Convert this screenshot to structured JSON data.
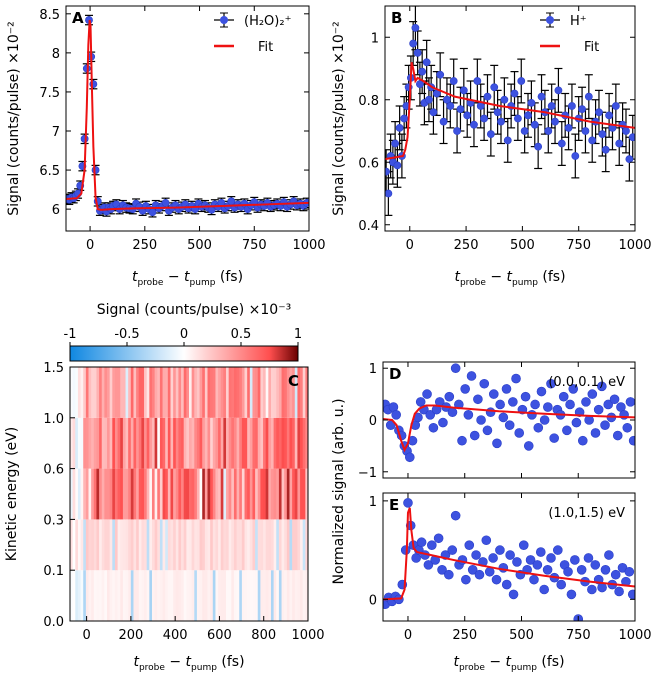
{
  "chart_data": [
    {
      "panel": "A",
      "type": "scatter",
      "title": "",
      "xlabel": "t_probe − t_pump (fs)",
      "ylabel": "Signal (counts/pulse) ×10⁻²",
      "xlim": [
        -110,
        1000
      ],
      "ylim": [
        5.72,
        8.6
      ],
      "xticks": [
        0,
        250,
        500,
        750,
        1000
      ],
      "yticks": [
        6,
        6.5,
        7,
        7.5,
        8,
        8.5
      ],
      "ytick_labels": [
        "6",
        "6.5",
        "7",
        "7.5",
        "8",
        "8.5"
      ],
      "legend": {
        "series": "(H₂O)₂⁺",
        "fit": "Fit",
        "placement": "top-right"
      },
      "err": 0.06,
      "series": [
        {
          "name": "(H₂O)₂⁺",
          "x": [
            -105,
            -95,
            -85,
            -75,
            -65,
            -55,
            -45,
            -35,
            -25,
            -15,
            -5,
            5,
            15,
            25,
            35,
            45,
            55,
            65,
            75,
            85,
            95,
            105,
            120,
            135,
            150,
            165,
            180,
            195,
            210,
            225,
            240,
            255,
            270,
            285,
            300,
            315,
            330,
            345,
            360,
            375,
            390,
            405,
            420,
            435,
            450,
            465,
            480,
            495,
            510,
            525,
            540,
            555,
            570,
            585,
            600,
            615,
            630,
            645,
            660,
            675,
            690,
            705,
            720,
            735,
            750,
            765,
            780,
            795,
            810,
            825,
            840,
            855,
            870,
            885,
            900,
            915,
            930,
            945,
            960,
            975,
            990
          ],
          "y": [
            6.13,
            6.12,
            6.15,
            6.14,
            6.17,
            6.2,
            6.3,
            6.55,
            6.9,
            7.8,
            8.42,
            7.95,
            7.6,
            6.5,
            6.1,
            5.98,
            6.0,
            6.02,
            5.97,
            6.02,
            6.0,
            6.04,
            6.06,
            6.0,
            6.05,
            6.02,
            6.01,
            6.0,
            6.07,
            6.03,
            5.98,
            6.04,
            6.0,
            5.96,
            6.05,
            6.01,
            6.04,
            6.08,
            5.98,
            6.02,
            6.05,
            6.0,
            6.03,
            6.06,
            6.01,
            6.04,
            6.0,
            6.07,
            6.03,
            6.05,
            6.02,
            5.99,
            6.06,
            6.03,
            6.08,
            6.01,
            6.04,
            6.1,
            6.02,
            6.06,
            6.03,
            6.07,
            6.0,
            6.05,
            6.09,
            6.02,
            6.06,
            6.04,
            6.08,
            6.03,
            6.05,
            6.07,
            6.04,
            6.09,
            6.03,
            6.06,
            6.1,
            6.05,
            6.07,
            6.04,
            6.08
          ]
        }
      ],
      "fit": {
        "x": [
          -110,
          -60,
          -40,
          -25,
          -15,
          -8,
          -2,
          2,
          8,
          15,
          25,
          35,
          50,
          100,
          200,
          400,
          600,
          800,
          1000
        ],
        "y": [
          6.13,
          6.14,
          6.2,
          6.5,
          7.3,
          8.1,
          8.42,
          8.35,
          7.6,
          6.8,
          6.15,
          6.0,
          5.99,
          6.0,
          6.01,
          6.02,
          6.04,
          6.06,
          6.08
        ]
      }
    },
    {
      "panel": "B",
      "type": "scatter",
      "title": "",
      "xlabel": "t_probe − t_pump (fs)",
      "ylabel": "Signal (counts/pulse) ×10⁻²",
      "xlim": [
        -110,
        1000
      ],
      "ylim": [
        0.38,
        1.1
      ],
      "xticks": [
        0,
        250,
        500,
        750,
        1000
      ],
      "yticks": [
        0.4,
        0.6,
        0.8,
        1.0
      ],
      "ytick_labels": [
        "0.4",
        "0.6",
        "0.8",
        "1"
      ],
      "legend": {
        "series": "H⁺",
        "fit": "Fit",
        "placement": "top-right"
      },
      "err": 0.07,
      "series": [
        {
          "name": "H⁺",
          "x": [
            -105,
            -95,
            -85,
            -75,
            -65,
            -55,
            -45,
            -35,
            -25,
            -15,
            -5,
            5,
            15,
            25,
            35,
            45,
            55,
            65,
            75,
            85,
            95,
            105,
            120,
            135,
            150,
            165,
            180,
            195,
            210,
            225,
            240,
            255,
            270,
            285,
            300,
            315,
            330,
            345,
            360,
            375,
            390,
            405,
            420,
            435,
            450,
            465,
            480,
            495,
            510,
            525,
            540,
            555,
            570,
            585,
            600,
            615,
            630,
            645,
            660,
            675,
            690,
            705,
            720,
            735,
            750,
            765,
            780,
            795,
            810,
            825,
            840,
            855,
            870,
            885,
            900,
            915,
            930,
            945,
            960,
            975,
            990
          ],
          "y": [
            0.57,
            0.5,
            0.62,
            0.6,
            0.66,
            0.59,
            0.71,
            0.62,
            0.74,
            0.78,
            0.84,
            0.87,
            0.98,
            1.03,
            0.95,
            0.85,
            0.89,
            0.79,
            0.92,
            0.8,
            0.84,
            0.76,
            0.82,
            0.88,
            0.73,
            0.8,
            0.78,
            0.86,
            0.7,
            0.77,
            0.83,
            0.75,
            0.79,
            0.72,
            0.86,
            0.78,
            0.74,
            0.81,
            0.69,
            0.84,
            0.76,
            0.73,
            0.8,
            0.67,
            0.78,
            0.82,
            0.74,
            0.86,
            0.7,
            0.75,
            0.79,
            0.72,
            0.65,
            0.81,
            0.76,
            0.7,
            0.78,
            0.73,
            0.83,
            0.66,
            0.75,
            0.71,
            0.78,
            0.62,
            0.74,
            0.77,
            0.7,
            0.81,
            0.67,
            0.73,
            0.76,
            0.69,
            0.64,
            0.75,
            0.71,
            0.78,
            0.66,
            0.72,
            0.7,
            0.61,
            0.68
          ]
        }
      ],
      "fit": {
        "x": [
          -110,
          -30,
          -20,
          -10,
          0,
          8,
          15,
          25,
          35,
          60,
          100,
          200,
          400,
          600,
          800,
          1000
        ],
        "y": [
          0.61,
          0.62,
          0.64,
          0.68,
          0.8,
          0.92,
          0.9,
          0.86,
          0.87,
          0.86,
          0.84,
          0.81,
          0.78,
          0.76,
          0.73,
          0.71
        ]
      }
    },
    {
      "panel": "C",
      "type": "heatmap",
      "title": "Signal (counts/pulse) ×10⁻³",
      "xlabel": "t_probe − t_pump (fs)",
      "ylabel": "Kinetic energy (eV)",
      "xlim": [
        -75,
        1000
      ],
      "colorbar": {
        "range": [
          -1,
          1
        ],
        "ticks": [
          -1,
          -0.5,
          0,
          0.5,
          1
        ],
        "tick_labels": [
          "-1",
          "-0.5",
          "0",
          "0.5",
          "1"
        ],
        "placement": "top"
      },
      "xticks": [
        0,
        200,
        400,
        600,
        800,
        1000
      ],
      "y_band_edges": [
        "0.0",
        "0.1",
        "0.3",
        "0.6",
        "1.0",
        "1.5"
      ],
      "x_bin_count": 90,
      "band_levels": [
        0.08,
        0.2,
        0.75,
        0.7,
        0.55
      ],
      "note": "5 energy bands × 90 delay bins; intensity strong after t≈0, weak before"
    },
    {
      "panel": "D",
      "type": "scatter",
      "title": "(0.0,0.1) eV",
      "xlabel": "",
      "ylabel": "Normalized signal (arb. u.)",
      "xlim": [
        -110,
        1000
      ],
      "ylim": [
        -1.12,
        1.12
      ],
      "xticks": [
        0,
        250,
        500,
        750,
        1000
      ],
      "yticks": [
        -1,
        0,
        1
      ],
      "ytick_labels": [
        "−1",
        "0",
        "1"
      ],
      "series": [
        {
          "name": "(0.0,0.1) eV",
          "x": [
            -100,
            -88,
            -76,
            -64,
            -52,
            -40,
            -28,
            -16,
            -4,
            8,
            20,
            32,
            44,
            56,
            70,
            84,
            98,
            112,
            126,
            140,
            154,
            168,
            182,
            196,
            210,
            224,
            238,
            252,
            266,
            280,
            294,
            308,
            322,
            336,
            350,
            364,
            378,
            392,
            406,
            420,
            434,
            448,
            462,
            476,
            490,
            504,
            518,
            532,
            546,
            560,
            574,
            588,
            602,
            616,
            630,
            644,
            658,
            672,
            686,
            700,
            714,
            728,
            742,
            756,
            770,
            784,
            798,
            812,
            826,
            840,
            854,
            868,
            882,
            896,
            910,
            924,
            938,
            952,
            966,
            980,
            994
          ],
          "y": [
            0.3,
            0.2,
            -0.1,
            0.25,
            0.1,
            -0.2,
            -0.3,
            -0.5,
            -0.6,
            -0.72,
            -0.4,
            -0.1,
            0.05,
            0.35,
            0.2,
            0.5,
            0.1,
            -0.15,
            0.2,
            0.35,
            -0.05,
            0.25,
            0.45,
            0.15,
            1.0,
            0.3,
            -0.4,
            0.6,
            0.1,
            0.85,
            -0.3,
            0.4,
            0.0,
            0.7,
            -0.2,
            0.15,
            0.5,
            -0.45,
            0.3,
            0.05,
            0.6,
            -0.1,
            0.35,
            0.8,
            -0.25,
            0.2,
            0.45,
            -0.5,
            0.1,
            0.3,
            -0.15,
            0.55,
            0.0,
            0.25,
            0.7,
            -0.35,
            0.2,
            0.1,
            0.45,
            -0.2,
            0.3,
            0.6,
            -0.05,
            0.15,
            -0.4,
            0.35,
            0.0,
            0.5,
            -0.25,
            0.2,
            0.65,
            -0.1,
            0.3,
            0.05,
            0.4,
            -0.3,
            0.25,
            0.1,
            -0.15,
            0.35,
            -0.4
          ]
        }
      ],
      "fit": {
        "x": [
          -110,
          -70,
          -50,
          -30,
          -15,
          0,
          15,
          30,
          50,
          80,
          120,
          200,
          400,
          600,
          800,
          1000
        ],
        "y": [
          0.02,
          0.0,
          -0.1,
          -0.4,
          -0.58,
          -0.45,
          -0.1,
          0.12,
          0.22,
          0.28,
          0.28,
          0.24,
          0.17,
          0.12,
          0.08,
          0.05
        ]
      }
    },
    {
      "panel": "E",
      "type": "scatter",
      "title": "(1.0,1.5) eV",
      "xlabel": "t_probe − t_pump (fs)",
      "ylabel": "",
      "xlim": [
        -110,
        1000
      ],
      "ylim": [
        -0.22,
        1.08
      ],
      "xticks": [
        0,
        250,
        500,
        750,
        1000
      ],
      "yticks": [
        0,
        1
      ],
      "ytick_labels": [
        "0",
        "1"
      ],
      "series": [
        {
          "name": "(1.0,1.5) eV",
          "x": [
            -100,
            -85,
            -70,
            -55,
            -40,
            -25,
            -10,
            0,
            12,
            24,
            36,
            48,
            60,
            75,
            90,
            105,
            120,
            135,
            150,
            165,
            180,
            195,
            210,
            225,
            240,
            255,
            270,
            285,
            300,
            315,
            330,
            345,
            360,
            375,
            390,
            405,
            420,
            435,
            450,
            465,
            480,
            495,
            510,
            525,
            540,
            555,
            570,
            585,
            600,
            615,
            630,
            645,
            660,
            675,
            690,
            705,
            720,
            735,
            750,
            765,
            780,
            795,
            810,
            825,
            840,
            855,
            870,
            885,
            900,
            915,
            930,
            945,
            960,
            975,
            990
          ],
          "y": [
            -0.05,
            0.02,
            -0.02,
            0.03,
            0.0,
            0.15,
            0.5,
            0.98,
            0.75,
            0.55,
            0.42,
            0.5,
            0.58,
            0.45,
            0.35,
            0.55,
            0.4,
            0.62,
            0.3,
            0.45,
            0.25,
            0.5,
            0.85,
            0.35,
            0.4,
            0.2,
            0.55,
            0.3,
            0.45,
            0.25,
            0.38,
            0.6,
            0.28,
            0.42,
            0.2,
            0.5,
            0.32,
            0.15,
            0.45,
            0.05,
            0.38,
            0.25,
            0.55,
            0.3,
            0.4,
            0.2,
            0.35,
            0.48,
            0.1,
            0.3,
            0.42,
            0.22,
            0.5,
            0.15,
            0.35,
            0.28,
            0.05,
            0.4,
            -0.2,
            0.3,
            0.18,
            0.42,
            0.1,
            0.35,
            0.2,
            0.12,
            0.3,
            0.45,
            0.15,
            0.25,
            0.08,
            0.32,
            0.18,
            0.28,
            0.05
          ]
        }
      ],
      "fit": {
        "x": [
          -110,
          -30,
          -15,
          -5,
          0,
          8,
          15,
          25,
          40,
          60,
          100,
          200,
          400,
          600,
          800,
          1000
        ],
        "y": [
          0.0,
          0.01,
          0.1,
          0.5,
          0.88,
          0.93,
          0.7,
          0.52,
          0.48,
          0.47,
          0.45,
          0.4,
          0.31,
          0.24,
          0.18,
          0.13
        ]
      }
    }
  ]
}
